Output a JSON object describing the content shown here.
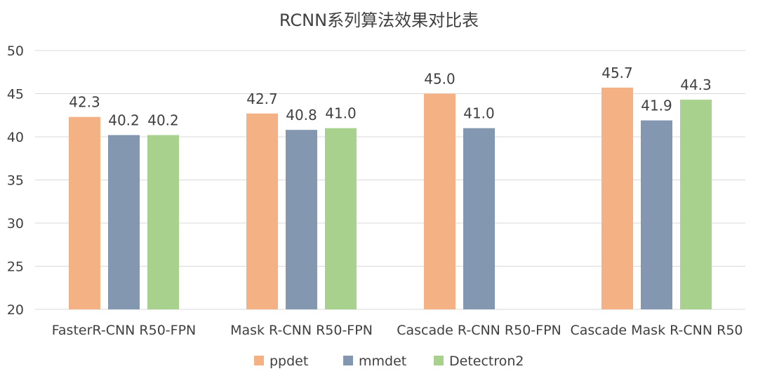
{
  "chart_data": {
    "type": "bar",
    "title": "RCNN系列算法效果对比表",
    "categories": [
      "FasterR-CNN R50-FPN",
      "Mask R-CNN R50-FPN",
      "Cascade R-CNN R50-FPN",
      "Cascade Mask R-CNN R50"
    ],
    "series": [
      {
        "name": "ppdet",
        "color": "#F4B183",
        "values": [
          42.3,
          42.7,
          45.0,
          45.7
        ],
        "labels": [
          "42.3",
          "42.7",
          "45.0",
          "45.7"
        ]
      },
      {
        "name": "mmdet",
        "color": "#8497B0",
        "values": [
          40.2,
          40.8,
          41.0,
          41.9
        ],
        "labels": [
          "40.2",
          "40.8",
          "41.0",
          "41.9"
        ]
      },
      {
        "name": "Detectron2",
        "color": "#A9D18E",
        "values": [
          40.2,
          41.0,
          null,
          44.3
        ],
        "labels": [
          "40.2",
          "41.0",
          "",
          "44.3"
        ]
      }
    ],
    "ylim": [
      20,
      50
    ],
    "yticks": [
      "20",
      "25",
      "30",
      "35",
      "40",
      "45",
      "50"
    ],
    "grid": true,
    "legend_position": "bottom"
  }
}
